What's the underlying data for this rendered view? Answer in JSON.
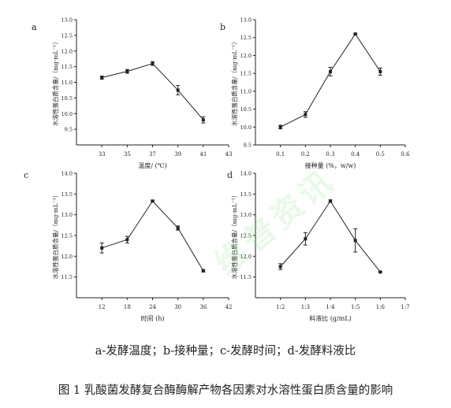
{
  "figure": {
    "legend_text": "a-发酵温度；b-接种量；c-发酵时间；d-发酵料液比",
    "caption": "图 1 乳酸菌发酵复合酶酶解产物各因素对水溶性蛋白质含量的影响",
    "watermark": "维普资讯",
    "line_color": "#222222"
  },
  "chart_data": [
    {
      "panel": "a",
      "type": "line",
      "xlabel": "温度/ (℃)",
      "ylabel": "水溶性蛋白质含量/（mg·mL⁻¹）",
      "x": [
        33,
        35,
        37,
        39,
        41
      ],
      "y": [
        11.15,
        11.35,
        11.6,
        10.75,
        9.8
      ],
      "err": [
        0.05,
        0.06,
        0.06,
        0.15,
        0.1
      ],
      "xlim": [
        31,
        43
      ],
      "ylim": [
        9.0,
        13.0
      ],
      "xticks": [
        "33",
        "35",
        "37",
        "39",
        "41",
        "43"
      ],
      "yticks": [
        "9.5",
        "10.0",
        "10.5",
        "11.0",
        "11.5",
        "12.0",
        "12.5",
        "13.0"
      ]
    },
    {
      "panel": "b",
      "type": "line",
      "xlabel": "接种量 (%，w/w)",
      "ylabel": "水溶性蛋白质含量/（mg·mL⁻¹）",
      "x": [
        0.1,
        0.2,
        0.3,
        0.4,
        0.5
      ],
      "y": [
        10.0,
        10.35,
        11.55,
        12.6,
        11.55
      ],
      "err": [
        0.05,
        0.08,
        0.12,
        0.02,
        0.1
      ],
      "xlim": [
        0,
        0.6
      ],
      "ylim": [
        9.5,
        13.0
      ],
      "xticks": [
        "0.1",
        "0.2",
        "0.3",
        "0.4",
        "0.5",
        "0.6"
      ],
      "yticks": [
        "9.5",
        "10.0",
        "10.5",
        "11.0",
        "11.5",
        "12.0",
        "12.5",
        "13.0"
      ]
    },
    {
      "panel": "c",
      "type": "line",
      "xlabel": "时间 (h)",
      "ylabel": "水溶性蛋白质含量/（mg·mL⁻¹）",
      "x": [
        12,
        18,
        24,
        30,
        36
      ],
      "y": [
        12.2,
        12.4,
        13.33,
        12.68,
        11.65
      ],
      "err": [
        0.12,
        0.08,
        0.02,
        0.05,
        0.03
      ],
      "xlim": [
        6,
        42
      ],
      "ylim": [
        11.0,
        14.0
      ],
      "xticks": [
        "12",
        "18",
        "24",
        "30",
        "36",
        "42"
      ],
      "yticks": [
        "11.5",
        "12.0",
        "12.5",
        "13.0",
        "13.5",
        "14.0"
      ]
    },
    {
      "panel": "d",
      "type": "line",
      "xlabel": "料液比 (g/mL)",
      "ylabel": "水溶性蛋白质含量/（mg·mL⁻¹）",
      "x": [
        2,
        3,
        4,
        5,
        6
      ],
      "y": [
        11.75,
        12.42,
        13.33,
        12.38,
        11.62
      ],
      "err": [
        0.07,
        0.15,
        0.03,
        0.28,
        0.02
      ],
      "xlim": [
        1,
        7
      ],
      "ylim": [
        11.0,
        14.0
      ],
      "xticks": [
        "1:2",
        "1:3",
        "1:4",
        "1:5",
        "1:6",
        "1:7"
      ],
      "yticks": [
        "11.5",
        "12.0",
        "12.5",
        "13.0",
        "13.5",
        "14.0"
      ]
    }
  ]
}
